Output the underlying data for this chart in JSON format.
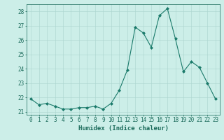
{
  "x": [
    0,
    1,
    2,
    3,
    4,
    5,
    6,
    7,
    8,
    9,
    10,
    11,
    12,
    13,
    14,
    15,
    16,
    17,
    18,
    19,
    20,
    21,
    22,
    23
  ],
  "y": [
    21.9,
    21.5,
    21.6,
    21.4,
    21.2,
    21.2,
    21.3,
    21.3,
    21.4,
    21.2,
    21.6,
    22.5,
    23.9,
    26.9,
    26.5,
    25.5,
    27.7,
    28.2,
    26.1,
    23.8,
    24.5,
    24.1,
    23.0,
    21.9
  ],
  "line_color": "#1a7a6a",
  "marker": "D",
  "markersize": 2.0,
  "linewidth": 0.8,
  "bg_color": "#cceee8",
  "grid_color": "#aad4ce",
  "xlabel": "Humidex (Indice chaleur)",
  "xlabel_fontsize": 6.5,
  "xlabel_color": "#1a6a5a",
  "tick_color": "#1a6a5a",
  "tick_fontsize": 5.5,
  "ylim": [
    20.8,
    28.5
  ],
  "yticks": [
    21,
    22,
    23,
    24,
    25,
    26,
    27,
    28
  ],
  "xlim": [
    -0.5,
    23.5
  ],
  "xticks": [
    0,
    1,
    2,
    3,
    4,
    5,
    6,
    7,
    8,
    9,
    10,
    11,
    12,
    13,
    14,
    15,
    16,
    17,
    18,
    19,
    20,
    21,
    22,
    23
  ]
}
